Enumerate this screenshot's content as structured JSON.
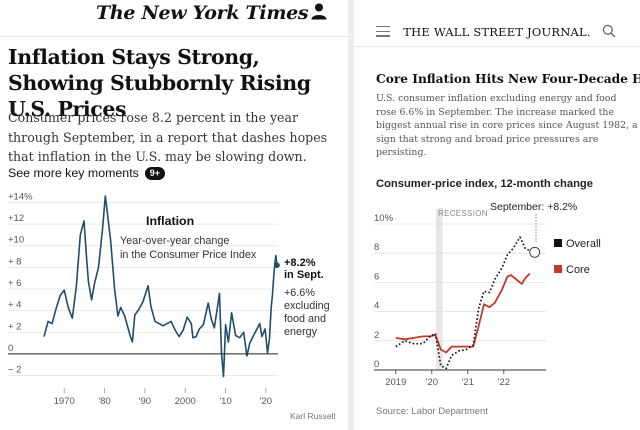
{
  "nyt": {
    "masthead": "The New York Times",
    "headline": "Inflation Stays Strong, Showing Stubbornly Rising U.S. Prices",
    "summary": "Consumer prices rose 8.2 percent in the year through September, in a report that dashes hopes that inflation in the U.S. may be slowing down.",
    "key_moments_label": "See more key moments",
    "key_moments_badge": "9+",
    "credit": "Karl Russell",
    "icons": {
      "account": "user-icon"
    }
  },
  "wsj": {
    "masthead": "THE WALL STREET JOURNAL.",
    "title": "Core Inflation Hits New Four-Decade High",
    "deck": "U.S. consumer inflation excluding energy and food rose 6.6% in September. The increase marked the biggest annual rise in core prices since August 1982, a sign that strong and broad price pressures are persisting.",
    "chart_title": "Consumer-price index, 12-month change",
    "source": "Source: Labor Department",
    "icons": {
      "menu": "menu-icon",
      "search": "search-icon"
    }
  },
  "chart_data": [
    {
      "type": "line",
      "title": "Inflation",
      "subtitle": "Year-over-year change in the Consumer Price Index",
      "x_tick_labels": [
        "1970",
        "'80",
        "'90",
        "2000",
        "'10",
        "'20"
      ],
      "x_tick_values": [
        1970,
        1980,
        1990,
        2000,
        2010,
        2020
      ],
      "y_tick_labels": [
        "+14%",
        "+12",
        "+10",
        "+ 8",
        "+ 6",
        "+ 4",
        "+ 2",
        "0",
        "− 2"
      ],
      "y_tick_values": [
        14,
        12,
        10,
        8,
        6,
        4,
        2,
        0,
        -2
      ],
      "xlim": [
        1964,
        2023
      ],
      "ylim": [
        -2.6,
        14.6
      ],
      "grid": true,
      "series": [
        {
          "name": "Overall",
          "color": "#1f4e6b",
          "points": [
            [
              1965,
              1.6
            ],
            [
              1966,
              3.0
            ],
            [
              1967,
              2.8
            ],
            [
              1968,
              4.2
            ],
            [
              1969,
              5.4
            ],
            [
              1970,
              5.9
            ],
            [
              1971,
              4.3
            ],
            [
              1972,
              3.3
            ],
            [
              1973,
              6.2
            ],
            [
              1974,
              11.0
            ],
            [
              1974.9,
              12.3
            ],
            [
              1975.5,
              9.1
            ],
            [
              1976,
              6.7
            ],
            [
              1976.8,
              5.0
            ],
            [
              1977.5,
              6.5
            ],
            [
              1978.5,
              8.0
            ],
            [
              1979.5,
              11.5
            ],
            [
              1980.2,
              14.6
            ],
            [
              1980.8,
              12.7
            ],
            [
              1981.5,
              10.5
            ],
            [
              1982.5,
              6.0
            ],
            [
              1983.3,
              3.5
            ],
            [
              1984,
              4.3
            ],
            [
              1985,
              3.5
            ],
            [
              1986.4,
              1.6
            ],
            [
              1986.9,
              1.1
            ],
            [
              1987.5,
              3.6
            ],
            [
              1988.5,
              4.1
            ],
            [
              1989.5,
              4.8
            ],
            [
              1990.8,
              6.3
            ],
            [
              1991.5,
              4.4
            ],
            [
              1992.5,
              3.0
            ],
            [
              1993.5,
              2.8
            ],
            [
              1994.5,
              2.6
            ],
            [
              1995.5,
              2.8
            ],
            [
              1996.5,
              3.0
            ],
            [
              1997.5,
              2.2
            ],
            [
              1998.5,
              1.6
            ],
            [
              1999.5,
              2.2
            ],
            [
              2000.5,
              3.4
            ],
            [
              2001.5,
              2.8
            ],
            [
              2001.9,
              1.5
            ],
            [
              2002.7,
              1.6
            ],
            [
              2003.5,
              2.3
            ],
            [
              2004.5,
              2.7
            ],
            [
              2005.7,
              4.7
            ],
            [
              2006.5,
              3.2
            ],
            [
              2007.2,
              2.4
            ],
            [
              2007.9,
              4.1
            ],
            [
              2008.5,
              5.6
            ],
            [
              2009,
              0.1
            ],
            [
              2009.5,
              -2.1
            ],
            [
              2010,
              2.7
            ],
            [
              2010.7,
              1.1
            ],
            [
              2011.5,
              3.8
            ],
            [
              2012.5,
              1.7
            ],
            [
              2013.5,
              1.5
            ],
            [
              2014.5,
              2.0
            ],
            [
              2015.3,
              -0.2
            ],
            [
              2016,
              1.0
            ],
            [
              2016.8,
              1.6
            ],
            [
              2017.5,
              2.1
            ],
            [
              2018.5,
              2.8
            ],
            [
              2019,
              1.6
            ],
            [
              2019.8,
              2.3
            ],
            [
              2020.4,
              0.1
            ],
            [
              2020.9,
              1.4
            ],
            [
              2021.3,
              4.2
            ],
            [
              2021.6,
              5.4
            ],
            [
              2021.9,
              7.0
            ],
            [
              2022.2,
              8.3
            ],
            [
              2022.45,
              9.1
            ],
            [
              2022.75,
              8.2
            ]
          ]
        }
      ],
      "annotations": [
        {
          "label": "+8.2%",
          "label2": "in Sept."
        },
        {
          "label": "+6.6%",
          "lines": [
            "excluding",
            "food and",
            "energy"
          ]
        }
      ]
    },
    {
      "type": "line",
      "title": "Consumer-price index, 12-month change",
      "x_tick_labels": [
        "2019",
        "'20",
        "'21",
        "'22"
      ],
      "x_tick_values": [
        2019,
        2020,
        2021,
        2022
      ],
      "y_tick_labels": [
        "10%",
        "8",
        "6",
        "4",
        "2",
        "0"
      ],
      "y_tick_values": [
        10,
        8,
        6,
        4,
        2,
        0
      ],
      "xlim": [
        2018.95,
        2022.95
      ],
      "ylim": [
        0,
        10
      ],
      "grid": true,
      "recession_label": "RECESSION",
      "callout": "September: +8.2%",
      "series": [
        {
          "name": "Overall",
          "color": "#111111",
          "points": [
            [
              2019,
              1.6
            ],
            [
              2019.25,
              2.0
            ],
            [
              2019.5,
              1.8
            ],
            [
              2019.75,
              1.8
            ],
            [
              2019.95,
              2.3
            ],
            [
              2020.1,
              2.5
            ],
            [
              2020.25,
              0.3
            ],
            [
              2020.4,
              0.1
            ],
            [
              2020.55,
              1.0
            ],
            [
              2020.75,
              1.3
            ],
            [
              2020.95,
              1.4
            ],
            [
              2021.15,
              1.7
            ],
            [
              2021.3,
              4.2
            ],
            [
              2021.45,
              5.4
            ],
            [
              2021.6,
              5.3
            ],
            [
              2021.75,
              6.2
            ],
            [
              2021.95,
              7.0
            ],
            [
              2022.1,
              7.9
            ],
            [
              2022.25,
              8.3
            ],
            [
              2022.45,
              9.1
            ],
            [
              2022.6,
              8.3
            ],
            [
              2022.72,
              8.2
            ]
          ]
        },
        {
          "name": "Core",
          "color": "#c0392b",
          "points": [
            [
              2019,
              2.2
            ],
            [
              2019.25,
              2.1
            ],
            [
              2019.5,
              2.2
            ],
            [
              2019.75,
              2.3
            ],
            [
              2019.95,
              2.3
            ],
            [
              2020.1,
              2.4
            ],
            [
              2020.25,
              1.4
            ],
            [
              2020.4,
              1.2
            ],
            [
              2020.55,
              1.6
            ],
            [
              2020.75,
              1.6
            ],
            [
              2020.95,
              1.6
            ],
            [
              2021.15,
              1.6
            ],
            [
              2021.3,
              3.0
            ],
            [
              2021.45,
              4.5
            ],
            [
              2021.6,
              4.3
            ],
            [
              2021.75,
              4.6
            ],
            [
              2021.95,
              5.5
            ],
            [
              2022.1,
              6.4
            ],
            [
              2022.2,
              6.5
            ],
            [
              2022.35,
              6.2
            ],
            [
              2022.5,
              5.9
            ],
            [
              2022.6,
              6.3
            ],
            [
              2022.72,
              6.6
            ]
          ]
        }
      ]
    }
  ]
}
